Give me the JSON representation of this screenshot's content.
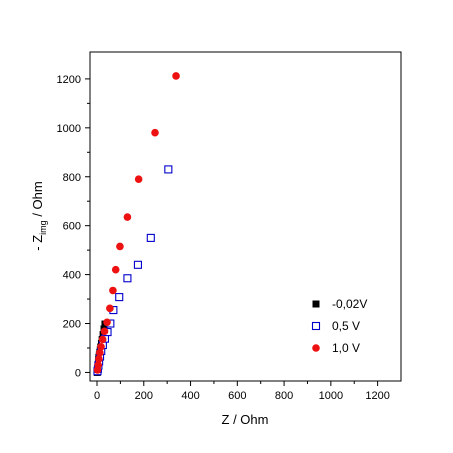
{
  "chart_data": {
    "type": "scatter",
    "xlabel": "Z / Ohm",
    "ylabel_main": "- Z",
    "ylabel_sub": "img",
    "ylabel_tail": " / Ohm",
    "xlim": [
      -30,
      1300
    ],
    "ylim": [
      -35,
      1310
    ],
    "xticks": [
      0,
      200,
      400,
      600,
      800,
      1000,
      1200
    ],
    "yticks": [
      0,
      200,
      400,
      600,
      800,
      1000,
      1200
    ],
    "xtick_labels": [
      "0",
      "200",
      "400",
      "600",
      "800",
      "1000",
      "1200"
    ],
    "ytick_labels": [
      "0",
      "200",
      "400",
      "600",
      "800",
      "1000",
      "1200"
    ],
    "legend_position": "bottom-right",
    "series": [
      {
        "name": "-0,02V",
        "marker": "filled-square",
        "color": "#000000",
        "points": [
          [
            1,
            0
          ],
          [
            2,
            8
          ],
          [
            3,
            16
          ],
          [
            4,
            24
          ],
          [
            5,
            33
          ],
          [
            6,
            42
          ],
          [
            7,
            52
          ],
          [
            8,
            62
          ],
          [
            10,
            72
          ],
          [
            12,
            82
          ],
          [
            14,
            92
          ],
          [
            16,
            104
          ],
          [
            19,
            118
          ],
          [
            22,
            135
          ],
          [
            26,
            155
          ],
          [
            30,
            178
          ],
          [
            34,
            198
          ]
        ]
      },
      {
        "name": "0,5 V",
        "marker": "open-square",
        "color": "#0000cc",
        "points": [
          [
            2,
            5
          ],
          [
            4,
            15
          ],
          [
            6,
            28
          ],
          [
            9,
            45
          ],
          [
            13,
            65
          ],
          [
            18,
            88
          ],
          [
            25,
            112
          ],
          [
            34,
            138
          ],
          [
            45,
            165
          ],
          [
            57,
            200
          ],
          [
            70,
            255
          ],
          [
            95,
            308
          ],
          [
            130,
            385
          ],
          [
            175,
            440
          ],
          [
            230,
            550
          ],
          [
            305,
            830
          ]
        ]
      },
      {
        "name": "1,0 V",
        "marker": "filled-circle",
        "color": "#ee1111",
        "points": [
          [
            2,
            10
          ],
          [
            5,
            30
          ],
          [
            8,
            55
          ],
          [
            12,
            80
          ],
          [
            17,
            105
          ],
          [
            24,
            135
          ],
          [
            32,
            168
          ],
          [
            43,
            205
          ],
          [
            55,
            262
          ],
          [
            68,
            335
          ],
          [
            80,
            420
          ],
          [
            98,
            515
          ],
          [
            130,
            635
          ],
          [
            178,
            790
          ],
          [
            248,
            980
          ],
          [
            338,
            1212
          ]
        ]
      }
    ]
  }
}
